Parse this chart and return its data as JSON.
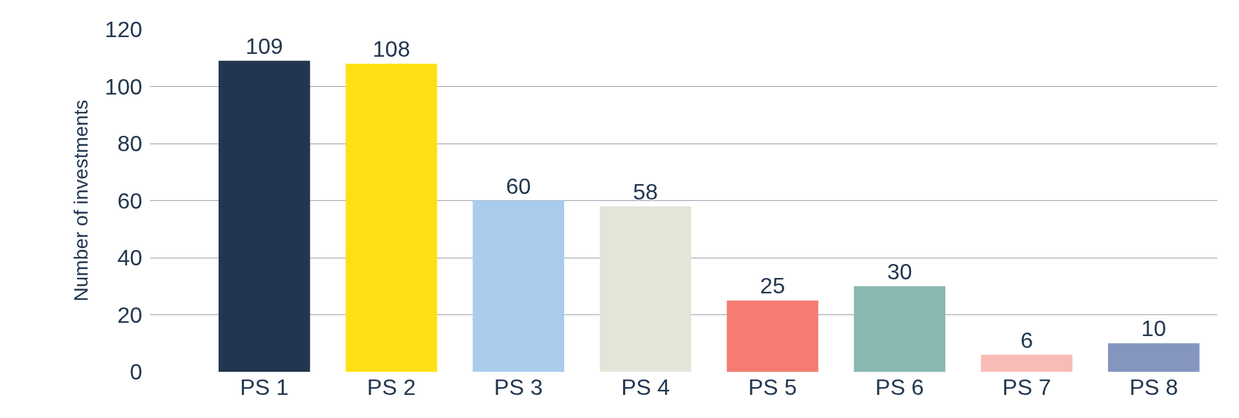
{
  "chart_data": {
    "type": "bar",
    "ylabel": "Number of investments",
    "categories": [
      "PS 1",
      "PS 2",
      "PS 3",
      "PS 4",
      "PS 5",
      "PS 6",
      "PS 7",
      "PS 8"
    ],
    "values": [
      109,
      108,
      60,
      58,
      25,
      30,
      6,
      10
    ],
    "colors": [
      "#22364f",
      "#ffe014",
      "#a9cced",
      "#e3e5d8",
      "#f47c72",
      "#89b8b1",
      "#f7bcb5",
      "#8496c0"
    ],
    "ylim": [
      0,
      120
    ],
    "yticks": [
      0,
      20,
      40,
      60,
      80,
      100,
      120
    ],
    "grid": "y",
    "data_labels": true,
    "legend": false
  }
}
